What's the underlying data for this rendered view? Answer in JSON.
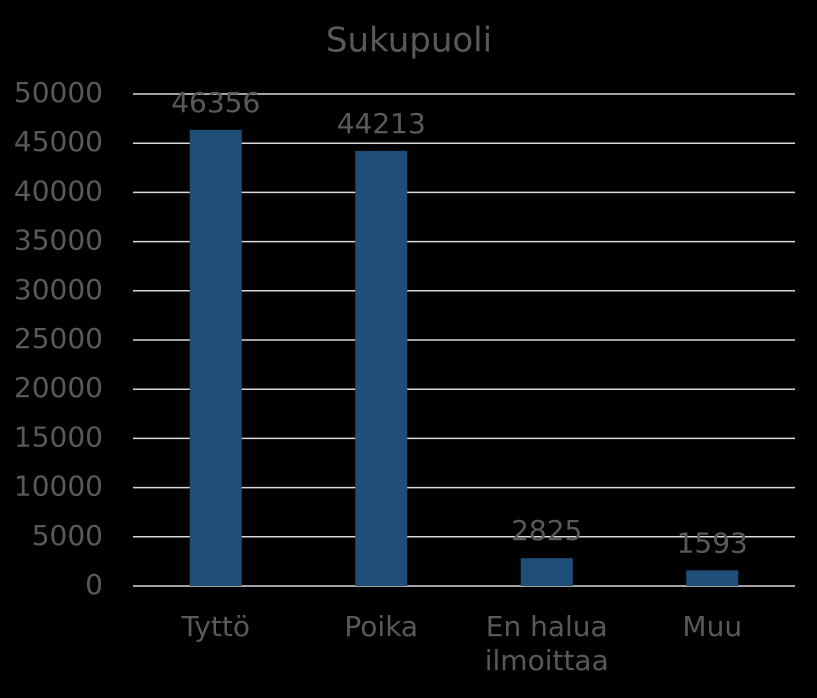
{
  "chart_data": {
    "type": "bar",
    "title": "Sukupuoli",
    "categories": [
      "Tyttö",
      "Poika",
      "En halua ilmoittaa",
      "Muu"
    ],
    "values": [
      46356,
      44213,
      2825,
      1593
    ],
    "color": "#1f4e79",
    "ylim": [
      0,
      50000
    ],
    "yticks": [
      0,
      5000,
      10000,
      15000,
      20000,
      25000,
      30000,
      35000,
      40000,
      45000,
      50000
    ],
    "grid": true
  }
}
